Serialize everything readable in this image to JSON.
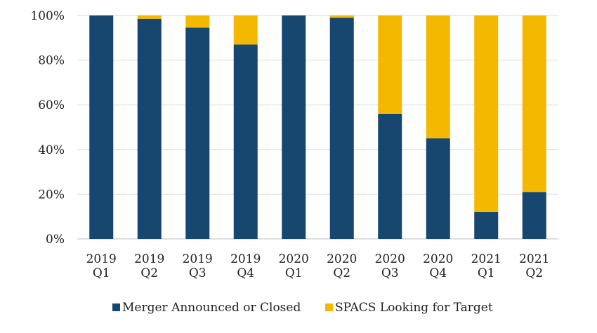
{
  "chart_data": {
    "type": "bar",
    "stacked": true,
    "categories": [
      [
        "2019",
        "Q1"
      ],
      [
        "2019",
        "Q2"
      ],
      [
        "2019",
        "Q3"
      ],
      [
        "2019",
        "Q4"
      ],
      [
        "2020",
        "Q1"
      ],
      [
        "2020",
        "Q2"
      ],
      [
        "2020",
        "Q3"
      ],
      [
        "2020",
        "Q4"
      ],
      [
        "2021",
        "Q1"
      ],
      [
        "2021",
        "Q2"
      ]
    ],
    "series": [
      {
        "name": "Merger Announced or Closed",
        "color": "#17466f",
        "values": [
          100,
          98.5,
          94.5,
          87,
          100,
          99,
          56,
          45,
          12,
          21
        ]
      },
      {
        "name": "SPACS Looking for Target",
        "color": "#f5b800",
        "values": [
          0,
          1.5,
          5.5,
          13,
          0,
          1,
          44,
          55,
          88,
          79
        ]
      }
    ],
    "ylim": [
      0,
      100
    ],
    "yticks": [
      "0%",
      "20%",
      "40%",
      "60%",
      "80%",
      "100%"
    ],
    "grid": true,
    "legend": "bottom",
    "title": "",
    "xlabel": "",
    "ylabel": ""
  }
}
